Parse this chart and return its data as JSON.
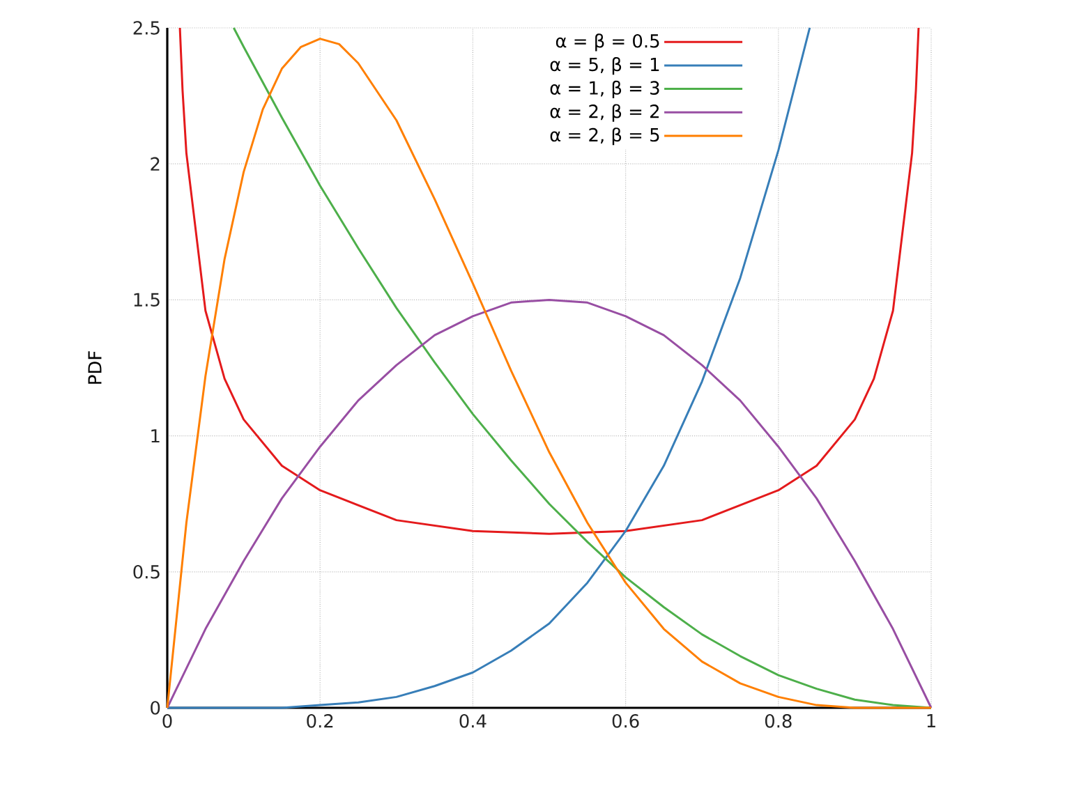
{
  "chart_data": {
    "type": "line",
    "ylabel": "PDF",
    "xlim": [
      0,
      1
    ],
    "ylim": [
      0,
      2.5
    ],
    "xticks": [
      0,
      0.2,
      0.4,
      0.6,
      0.8,
      1
    ],
    "yticks": [
      0,
      0.5,
      1,
      1.5,
      2,
      2.5
    ],
    "grid": true,
    "legend": "top right",
    "marker": "none",
    "line_style": "solid",
    "series": [
      {
        "name": "α = β = 0.5",
        "color": "#e41a1c",
        "x": [
          0.0165,
          0.02,
          0.025,
          0.05,
          0.075,
          0.1,
          0.15,
          0.2,
          0.3,
          0.4,
          0.5,
          0.6,
          0.7,
          0.8,
          0.85,
          0.9,
          0.925,
          0.95,
          0.975,
          0.98,
          0.9835
        ],
        "values": [
          2.5,
          2.27,
          2.04,
          1.46,
          1.21,
          1.06,
          0.89,
          0.8,
          0.69,
          0.65,
          0.64,
          0.65,
          0.69,
          0.8,
          0.89,
          1.06,
          1.21,
          1.46,
          2.04,
          2.27,
          2.5
        ]
      },
      {
        "name": "α = 5, β = 1",
        "color": "#377eb8",
        "x": [
          0,
          0.1,
          0.15,
          0.2,
          0.25,
          0.3,
          0.35,
          0.4,
          0.45,
          0.5,
          0.55,
          0.6,
          0.65,
          0.7,
          0.75,
          0.8,
          0.841
        ],
        "values": [
          0,
          0.0,
          0.0,
          0.01,
          0.02,
          0.04,
          0.08,
          0.13,
          0.21,
          0.31,
          0.46,
          0.65,
          0.89,
          1.2,
          1.58,
          2.05,
          2.5
        ]
      },
      {
        "name": "α = 1, β = 3",
        "color": "#4daf4a",
        "x": [
          0.087,
          0.1,
          0.15,
          0.2,
          0.25,
          0.3,
          0.35,
          0.4,
          0.45,
          0.5,
          0.55,
          0.6,
          0.65,
          0.7,
          0.75,
          0.8,
          0.85,
          0.9,
          0.95,
          1
        ],
        "values": [
          2.5,
          2.43,
          2.17,
          1.92,
          1.69,
          1.47,
          1.27,
          1.08,
          0.91,
          0.75,
          0.61,
          0.48,
          0.37,
          0.27,
          0.19,
          0.12,
          0.07,
          0.03,
          0.01,
          0
        ]
      },
      {
        "name": "α = 2, β = 2",
        "color": "#984ea3",
        "x": [
          0,
          0.05,
          0.1,
          0.15,
          0.2,
          0.25,
          0.3,
          0.35,
          0.4,
          0.45,
          0.5,
          0.55,
          0.6,
          0.65,
          0.7,
          0.75,
          0.8,
          0.85,
          0.9,
          0.95,
          1
        ],
        "values": [
          0,
          0.29,
          0.54,
          0.77,
          0.96,
          1.13,
          1.26,
          1.37,
          1.44,
          1.49,
          1.5,
          1.49,
          1.44,
          1.37,
          1.26,
          1.13,
          0.96,
          0.77,
          0.54,
          0.29,
          0
        ]
      },
      {
        "name": "α = 2, β = 5",
        "color": "#ff7f00",
        "x": [
          0,
          0.025,
          0.05,
          0.075,
          0.1,
          0.125,
          0.15,
          0.175,
          0.2,
          0.225,
          0.25,
          0.3,
          0.35,
          0.4,
          0.45,
          0.5,
          0.55,
          0.6,
          0.65,
          0.7,
          0.75,
          0.8,
          0.85,
          0.9,
          0.95,
          1
        ],
        "values": [
          0,
          0.68,
          1.22,
          1.65,
          1.97,
          2.2,
          2.35,
          2.43,
          2.46,
          2.44,
          2.37,
          2.16,
          1.87,
          1.56,
          1.24,
          0.94,
          0.68,
          0.46,
          0.29,
          0.17,
          0.09,
          0.04,
          0.01,
          0.0,
          0.0,
          0
        ]
      }
    ]
  }
}
